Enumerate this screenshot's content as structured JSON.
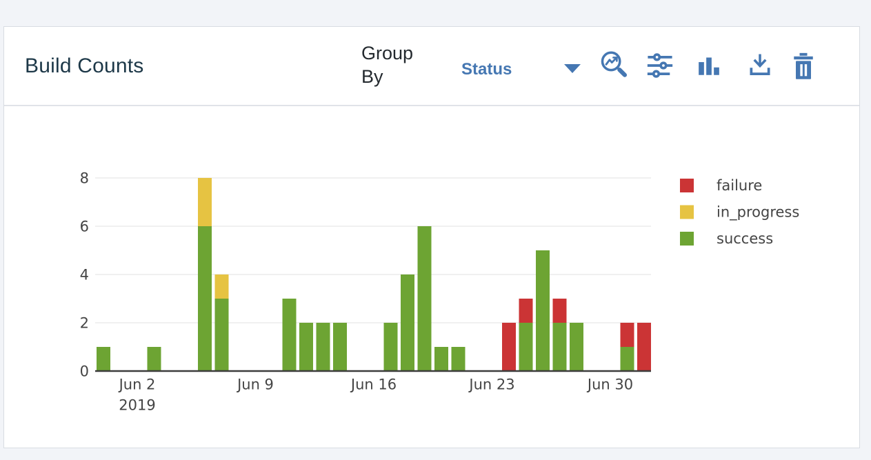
{
  "header": {
    "title": "Build Counts",
    "group_by_label": "Group By",
    "group_by_value": "Status",
    "toolbar": [
      {
        "name": "zoom-chart-icon"
      },
      {
        "name": "settings-adjust-icon"
      },
      {
        "name": "bar-chart-icon"
      },
      {
        "name": "download-icon"
      },
      {
        "name": "delete-icon"
      }
    ]
  },
  "colors": {
    "accent_blue": "#4577b2",
    "title_text": "#1d3848",
    "page_background": "#f2f4f8",
    "card_border": "#d8dce2",
    "axis_text": "#444444",
    "gridline": "#ececec",
    "axis_line": "#3c3c3c"
  },
  "chart_data": {
    "type": "bar",
    "stacked": true,
    "title": "Build Counts grouped by status",
    "xlabel": "",
    "ylabel": "",
    "y_axis": {
      "ticks": [
        0,
        2,
        4,
        6,
        8
      ],
      "range": [
        0,
        8
      ],
      "grid": true
    },
    "x_axis": {
      "ticks": [
        {
          "label": "Jun 2",
          "sub": "2019",
          "day": 0
        },
        {
          "label": "Jun 9",
          "sub": "",
          "day": 7
        },
        {
          "label": "Jun 16",
          "sub": "",
          "day": 14
        },
        {
          "label": "Jun 23",
          "sub": "",
          "day": 21
        },
        {
          "label": "Jun 30",
          "sub": "",
          "day": 28
        }
      ]
    },
    "legend": {
      "position": "right",
      "entries": [
        {
          "label": "failure",
          "color": "#cb3435"
        },
        {
          "label": "in_progress",
          "color": "#e6c342"
        },
        {
          "label": "success",
          "color": "#6da433"
        }
      ]
    },
    "stack_order": [
      "success",
      "in_progress",
      "failure"
    ],
    "series_colors": {
      "success": "#6da433",
      "in_progress": "#e6c342",
      "failure": "#cb3435"
    },
    "bars": [
      {
        "date": "May 31",
        "day": -2,
        "success": 1,
        "in_progress": 0,
        "failure": 0
      },
      {
        "date": "Jun 3",
        "day": 1,
        "success": 1,
        "in_progress": 0,
        "failure": 0
      },
      {
        "date": "Jun 6",
        "day": 4,
        "success": 6,
        "in_progress": 2,
        "failure": 0
      },
      {
        "date": "Jun 7",
        "day": 5,
        "success": 3,
        "in_progress": 1,
        "failure": 0
      },
      {
        "date": "Jun 11",
        "day": 9,
        "success": 3,
        "in_progress": 0,
        "failure": 0
      },
      {
        "date": "Jun 12",
        "day": 10,
        "success": 2,
        "in_progress": 0,
        "failure": 0
      },
      {
        "date": "Jun 13",
        "day": 11,
        "success": 2,
        "in_progress": 0,
        "failure": 0
      },
      {
        "date": "Jun 14",
        "day": 12,
        "success": 2,
        "in_progress": 0,
        "failure": 0
      },
      {
        "date": "Jun 17",
        "day": 15,
        "success": 2,
        "in_progress": 0,
        "failure": 0
      },
      {
        "date": "Jun 18",
        "day": 16,
        "success": 4,
        "in_progress": 0,
        "failure": 0
      },
      {
        "date": "Jun 19",
        "day": 17,
        "success": 6,
        "in_progress": 0,
        "failure": 0
      },
      {
        "date": "Jun 20",
        "day": 18,
        "success": 1,
        "in_progress": 0,
        "failure": 0
      },
      {
        "date": "Jun 21",
        "day": 19,
        "success": 1,
        "in_progress": 0,
        "failure": 0
      },
      {
        "date": "Jun 24",
        "day": 22,
        "success": 0,
        "in_progress": 0,
        "failure": 2
      },
      {
        "date": "Jun 25",
        "day": 23,
        "success": 2,
        "in_progress": 0,
        "failure": 1
      },
      {
        "date": "Jun 26",
        "day": 24,
        "success": 5,
        "in_progress": 0,
        "failure": 0
      },
      {
        "date": "Jun 27",
        "day": 25,
        "success": 2,
        "in_progress": 0,
        "failure": 1
      },
      {
        "date": "Jun 28",
        "day": 26,
        "success": 2,
        "in_progress": 0,
        "failure": 0
      },
      {
        "date": "Jul 1",
        "day": 29,
        "success": 1,
        "in_progress": 0,
        "failure": 1
      },
      {
        "date": "Jul 2",
        "day": 30,
        "success": 0,
        "in_progress": 0,
        "failure": 2
      }
    ]
  }
}
